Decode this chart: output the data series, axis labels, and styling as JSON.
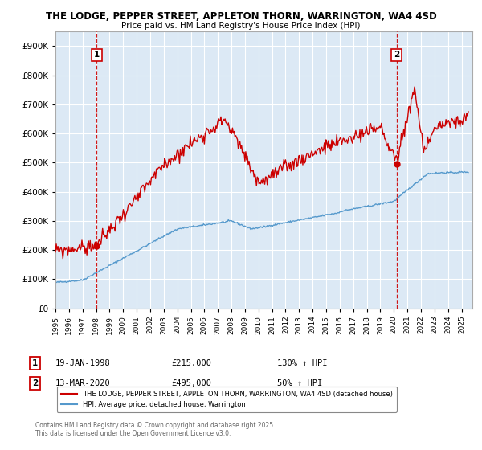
{
  "title_line1": "THE LODGE, PEPPER STREET, APPLETON THORN, WARRINGTON, WA4 4SD",
  "title_line2": "Price paid vs. HM Land Registry's House Price Index (HPI)",
  "legend_red": "THE LODGE, PEPPER STREET, APPLETON THORN, WARRINGTON, WA4 4SD (detached house)",
  "legend_blue": "HPI: Average price, detached house, Warrington",
  "point1_date": "19-JAN-1998",
  "point1_price": "£215,000",
  "point1_hpi": "130% ↑ HPI",
  "point2_date": "13-MAR-2020",
  "point2_price": "£495,000",
  "point2_hpi": "50% ↑ HPI",
  "footer": "Contains HM Land Registry data © Crown copyright and database right 2025.\nThis data is licensed under the Open Government Licence v3.0.",
  "ylim_min": 0,
  "ylim_max": 950000,
  "red_color": "#cc0000",
  "blue_color": "#5599cc",
  "bg_color": "#ffffff",
  "plot_bg_color": "#dce9f5",
  "grid_color": "#ffffff",
  "purchase1_year": 1998.05,
  "purchase1_price": 215000,
  "purchase2_year": 2020.2,
  "purchase2_price": 495000
}
